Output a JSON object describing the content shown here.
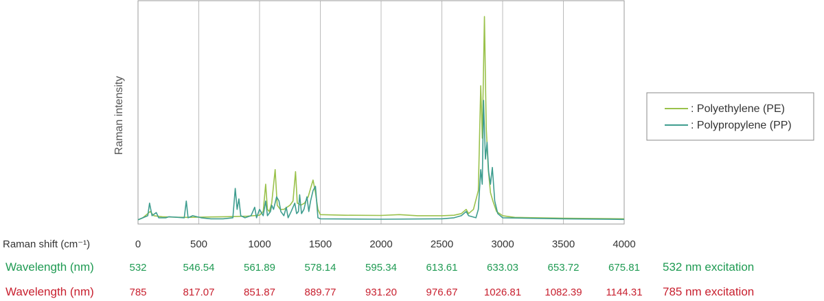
{
  "chart_data": {
    "type": "line",
    "ylabel": "Raman intensity",
    "xlabel": "Raman shift (cm⁻¹)",
    "xlim": [
      0,
      4000
    ],
    "ylim": [
      0,
      100
    ],
    "x_ticks": [
      "0",
      "500",
      "1000",
      "1500",
      "2000",
      "2500",
      "3000",
      "3500",
      "4000"
    ],
    "grid": "vertical",
    "legend_position": "right",
    "series": [
      {
        "name": ": Polyethylene (PE)",
        "color": "#99c14a",
        "points": [
          [
            0,
            1
          ],
          [
            40,
            2
          ],
          [
            80,
            4
          ],
          [
            100,
            5
          ],
          [
            130,
            3
          ],
          [
            200,
            2.5
          ],
          [
            300,
            2.3
          ],
          [
            400,
            2.2
          ],
          [
            500,
            2.3
          ],
          [
            600,
            2.4
          ],
          [
            700,
            2.5
          ],
          [
            800,
            2.6
          ],
          [
            900,
            2.8
          ],
          [
            1000,
            3.2
          ],
          [
            1030,
            5
          ],
          [
            1050,
            18
          ],
          [
            1065,
            6
          ],
          [
            1080,
            5
          ],
          [
            1100,
            9
          ],
          [
            1128,
            25
          ],
          [
            1145,
            8
          ],
          [
            1170,
            6
          ],
          [
            1200,
            6
          ],
          [
            1250,
            8
          ],
          [
            1275,
            10
          ],
          [
            1296,
            24
          ],
          [
            1310,
            9
          ],
          [
            1340,
            8
          ],
          [
            1370,
            9
          ],
          [
            1400,
            12
          ],
          [
            1420,
            16
          ],
          [
            1440,
            20
          ],
          [
            1460,
            14
          ],
          [
            1480,
            6
          ],
          [
            1500,
            3.5
          ],
          [
            1700,
            3.2
          ],
          [
            2000,
            3.1
          ],
          [
            2150,
            3.5
          ],
          [
            2300,
            3.0
          ],
          [
            2500,
            3.0
          ],
          [
            2600,
            3.2
          ],
          [
            2660,
            4
          ],
          [
            2700,
            6
          ],
          [
            2720,
            4
          ],
          [
            2760,
            6
          ],
          [
            2800,
            15
          ],
          [
            2820,
            65
          ],
          [
            2833,
            40
          ],
          [
            2850,
            98
          ],
          [
            2865,
            45
          ],
          [
            2882,
            25
          ],
          [
            2900,
            14
          ],
          [
            2920,
            10
          ],
          [
            2950,
            5
          ],
          [
            3000,
            3
          ],
          [
            3100,
            2.2
          ],
          [
            3500,
            1.8
          ],
          [
            4000,
            1.5
          ]
        ]
      },
      {
        "name": ": Polypropylene (PP)",
        "color": "#3e9d8f",
        "points": [
          [
            0,
            1
          ],
          [
            40,
            2
          ],
          [
            80,
            3
          ],
          [
            95,
            9
          ],
          [
            115,
            3
          ],
          [
            150,
            4.5
          ],
          [
            170,
            2
          ],
          [
            230,
            2
          ],
          [
            255,
            2.5
          ],
          [
            380,
            2
          ],
          [
            397,
            10
          ],
          [
            412,
            2
          ],
          [
            450,
            3
          ],
          [
            520,
            2
          ],
          [
            600,
            1.5
          ],
          [
            700,
            1.5
          ],
          [
            780,
            2
          ],
          [
            800,
            16
          ],
          [
            815,
            6
          ],
          [
            830,
            11
          ],
          [
            845,
            3
          ],
          [
            880,
            2
          ],
          [
            930,
            3
          ],
          [
            960,
            7
          ],
          [
            975,
            2
          ],
          [
            1000,
            6
          ],
          [
            1030,
            3
          ],
          [
            1050,
            10
          ],
          [
            1065,
            3
          ],
          [
            1090,
            5
          ],
          [
            1100,
            8
          ],
          [
            1115,
            6
          ],
          [
            1140,
            12
          ],
          [
            1160,
            10
          ],
          [
            1175,
            5
          ],
          [
            1200,
            3
          ],
          [
            1220,
            7
          ],
          [
            1235,
            2
          ],
          [
            1260,
            5
          ],
          [
            1290,
            9
          ],
          [
            1305,
            4
          ],
          [
            1320,
            5
          ],
          [
            1330,
            13
          ],
          [
            1345,
            4
          ],
          [
            1365,
            6
          ],
          [
            1390,
            12
          ],
          [
            1405,
            5
          ],
          [
            1420,
            10
          ],
          [
            1440,
            15
          ],
          [
            1460,
            17
          ],
          [
            1480,
            2
          ],
          [
            1500,
            1.5
          ],
          [
            2000,
            1.3
          ],
          [
            2500,
            1.5
          ],
          [
            2600,
            2
          ],
          [
            2660,
            3
          ],
          [
            2700,
            5
          ],
          [
            2720,
            3
          ],
          [
            2780,
            2
          ],
          [
            2800,
            6
          ],
          [
            2820,
            25
          ],
          [
            2832,
            18
          ],
          [
            2843,
            58
          ],
          [
            2858,
            30
          ],
          [
            2872,
            38
          ],
          [
            2885,
            24
          ],
          [
            2900,
            18
          ],
          [
            2915,
            26
          ],
          [
            2935,
            10
          ],
          [
            2960,
            4
          ],
          [
            3000,
            2
          ],
          [
            3500,
            1.5
          ],
          [
            4000,
            1.2
          ]
        ]
      }
    ],
    "wavelength_rows": [
      {
        "label": "Wavelength (nm)",
        "values": [
          "532",
          "546.54",
          "561.89",
          "578.14",
          "595.34",
          "613.61",
          "633.03",
          "653.72",
          "675.81"
        ],
        "note": "532 nm excitation",
        "color": "#1e9a52"
      },
      {
        "label": "Wavelength (nm)",
        "values": [
          "785",
          "817.07",
          "851.87",
          "889.77",
          "931.20",
          "976.67",
          "1026.81",
          "1082.39",
          "1144.31"
        ],
        "note": "785 nm excitation",
        "color": "#c8202f"
      }
    ]
  }
}
